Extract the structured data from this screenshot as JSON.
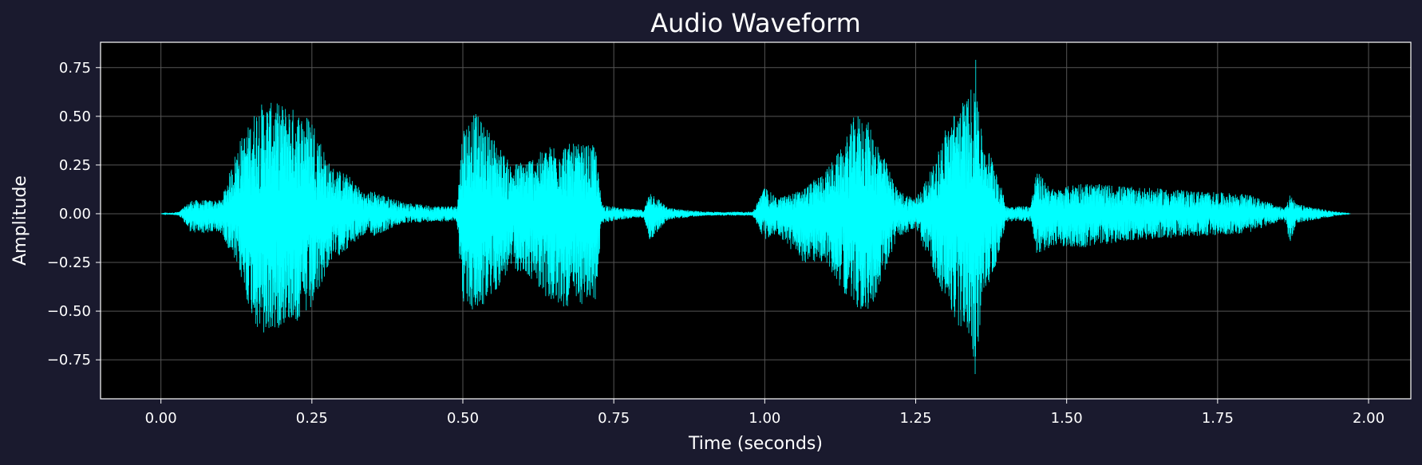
{
  "chart_data": {
    "type": "line",
    "title": "Audio Waveform",
    "xlabel": "Time (seconds)",
    "ylabel": "Amplitude",
    "xlim": [
      -0.1,
      2.07
    ],
    "ylim": [
      -0.95,
      0.88
    ],
    "xticks": [
      0.0,
      0.25,
      0.5,
      0.75,
      1.0,
      1.25,
      1.5,
      1.75,
      2.0
    ],
    "xtick_labels": [
      "0.00",
      "0.25",
      "0.50",
      "0.75",
      "1.00",
      "1.25",
      "1.50",
      "1.75",
      "2.00"
    ],
    "yticks": [
      0.75,
      0.5,
      0.25,
      0.0,
      -0.25,
      -0.5,
      -0.75
    ],
    "ytick_labels": [
      "0.75",
      "0.50",
      "0.25",
      "0.00",
      "−0.25",
      "−0.50",
      "−0.75"
    ],
    "grid": true,
    "colors": {
      "figure_background": "#1a1a2e",
      "plot_background": "#000000",
      "line": "#00ffff",
      "grid": "#555555",
      "text": "#ffffff"
    },
    "series": [
      {
        "envelope": {
          "t": [
            0.0,
            0.03,
            0.05,
            0.1,
            0.13,
            0.14,
            0.16,
            0.17,
            0.19,
            0.21,
            0.23,
            0.25,
            0.28,
            0.31,
            0.34,
            0.35,
            0.4,
            0.45,
            0.49,
            0.5,
            0.52,
            0.55,
            0.58,
            0.62,
            0.65,
            0.68,
            0.72,
            0.73,
            0.76,
            0.8,
            0.81,
            0.84,
            0.9,
            0.98,
            1.0,
            1.02,
            1.06,
            1.1,
            1.13,
            1.15,
            1.17,
            1.19,
            1.22,
            1.25,
            1.28,
            1.3,
            1.32,
            1.34,
            1.35,
            1.36,
            1.38,
            1.4,
            1.44,
            1.45,
            1.48,
            1.52,
            1.6,
            1.65,
            1.7,
            1.8,
            1.86,
            1.87,
            1.88,
            1.93,
            1.97
          ],
          "pos": [
            0.0,
            0.01,
            0.07,
            0.07,
            0.38,
            0.42,
            0.56,
            0.57,
            0.57,
            0.56,
            0.52,
            0.5,
            0.25,
            0.2,
            0.1,
            0.12,
            0.06,
            0.04,
            0.04,
            0.45,
            0.52,
            0.4,
            0.25,
            0.3,
            0.36,
            0.36,
            0.35,
            0.05,
            0.03,
            0.02,
            0.12,
            0.03,
            0.01,
            0.01,
            0.14,
            0.08,
            0.12,
            0.22,
            0.35,
            0.52,
            0.48,
            0.35,
            0.12,
            0.08,
            0.25,
            0.45,
            0.55,
            0.62,
            0.8,
            0.38,
            0.28,
            0.04,
            0.04,
            0.22,
            0.12,
            0.16,
            0.14,
            0.13,
            0.12,
            0.1,
            0.03,
            0.1,
            0.05,
            0.02,
            0.0
          ],
          "neg": [
            0.0,
            -0.01,
            -0.1,
            -0.1,
            -0.3,
            -0.43,
            -0.6,
            -0.64,
            -0.6,
            -0.55,
            -0.56,
            -0.5,
            -0.25,
            -0.18,
            -0.1,
            -0.12,
            -0.05,
            -0.04,
            -0.04,
            -0.45,
            -0.52,
            -0.42,
            -0.28,
            -0.35,
            -0.48,
            -0.48,
            -0.45,
            -0.05,
            -0.03,
            -0.02,
            -0.14,
            -0.03,
            -0.01,
            -0.01,
            -0.14,
            -0.1,
            -0.25,
            -0.25,
            -0.4,
            -0.48,
            -0.52,
            -0.38,
            -0.12,
            -0.08,
            -0.3,
            -0.45,
            -0.58,
            -0.62,
            -0.88,
            -0.42,
            -0.3,
            -0.04,
            -0.04,
            -0.22,
            -0.16,
            -0.18,
            -0.14,
            -0.13,
            -0.12,
            -0.1,
            -0.03,
            -0.16,
            -0.05,
            -0.02,
            0.0
          ]
        }
      }
    ]
  }
}
